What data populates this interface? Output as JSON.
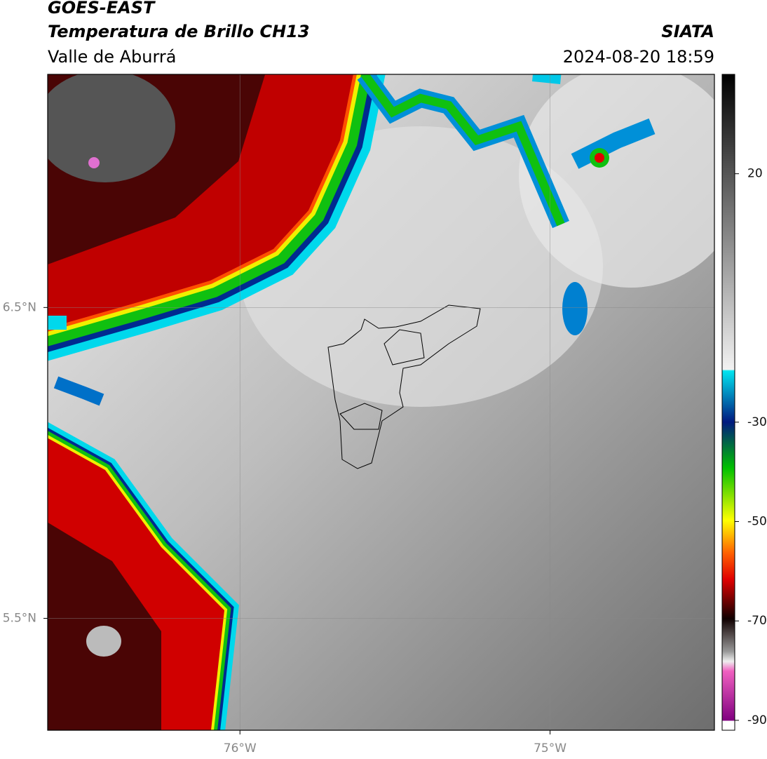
{
  "header": {
    "title": "GOES-EAST",
    "subtitle": "Temperatura de Brillo CH13",
    "region": "Valle de Aburrá",
    "source": "SIATA",
    "datetime": "2024-08-20 18:59"
  },
  "map": {
    "lonlim": [
      -76.62,
      -74.47
    ],
    "latlim": [
      5.14,
      7.25
    ],
    "lon_ticks": [
      {
        "value": -76,
        "label": "76°W"
      },
      {
        "value": -75,
        "label": "75°W"
      }
    ],
    "lat_ticks": [
      {
        "value": 6.5,
        "label": "6.5°N"
      },
      {
        "value": 5.5,
        "label": "5.5°N"
      }
    ],
    "grid": true
  },
  "colorbar": {
    "lim": [
      -92,
      40
    ],
    "ticks": [
      20,
      -30,
      -50,
      -70,
      -90
    ]
  }
}
